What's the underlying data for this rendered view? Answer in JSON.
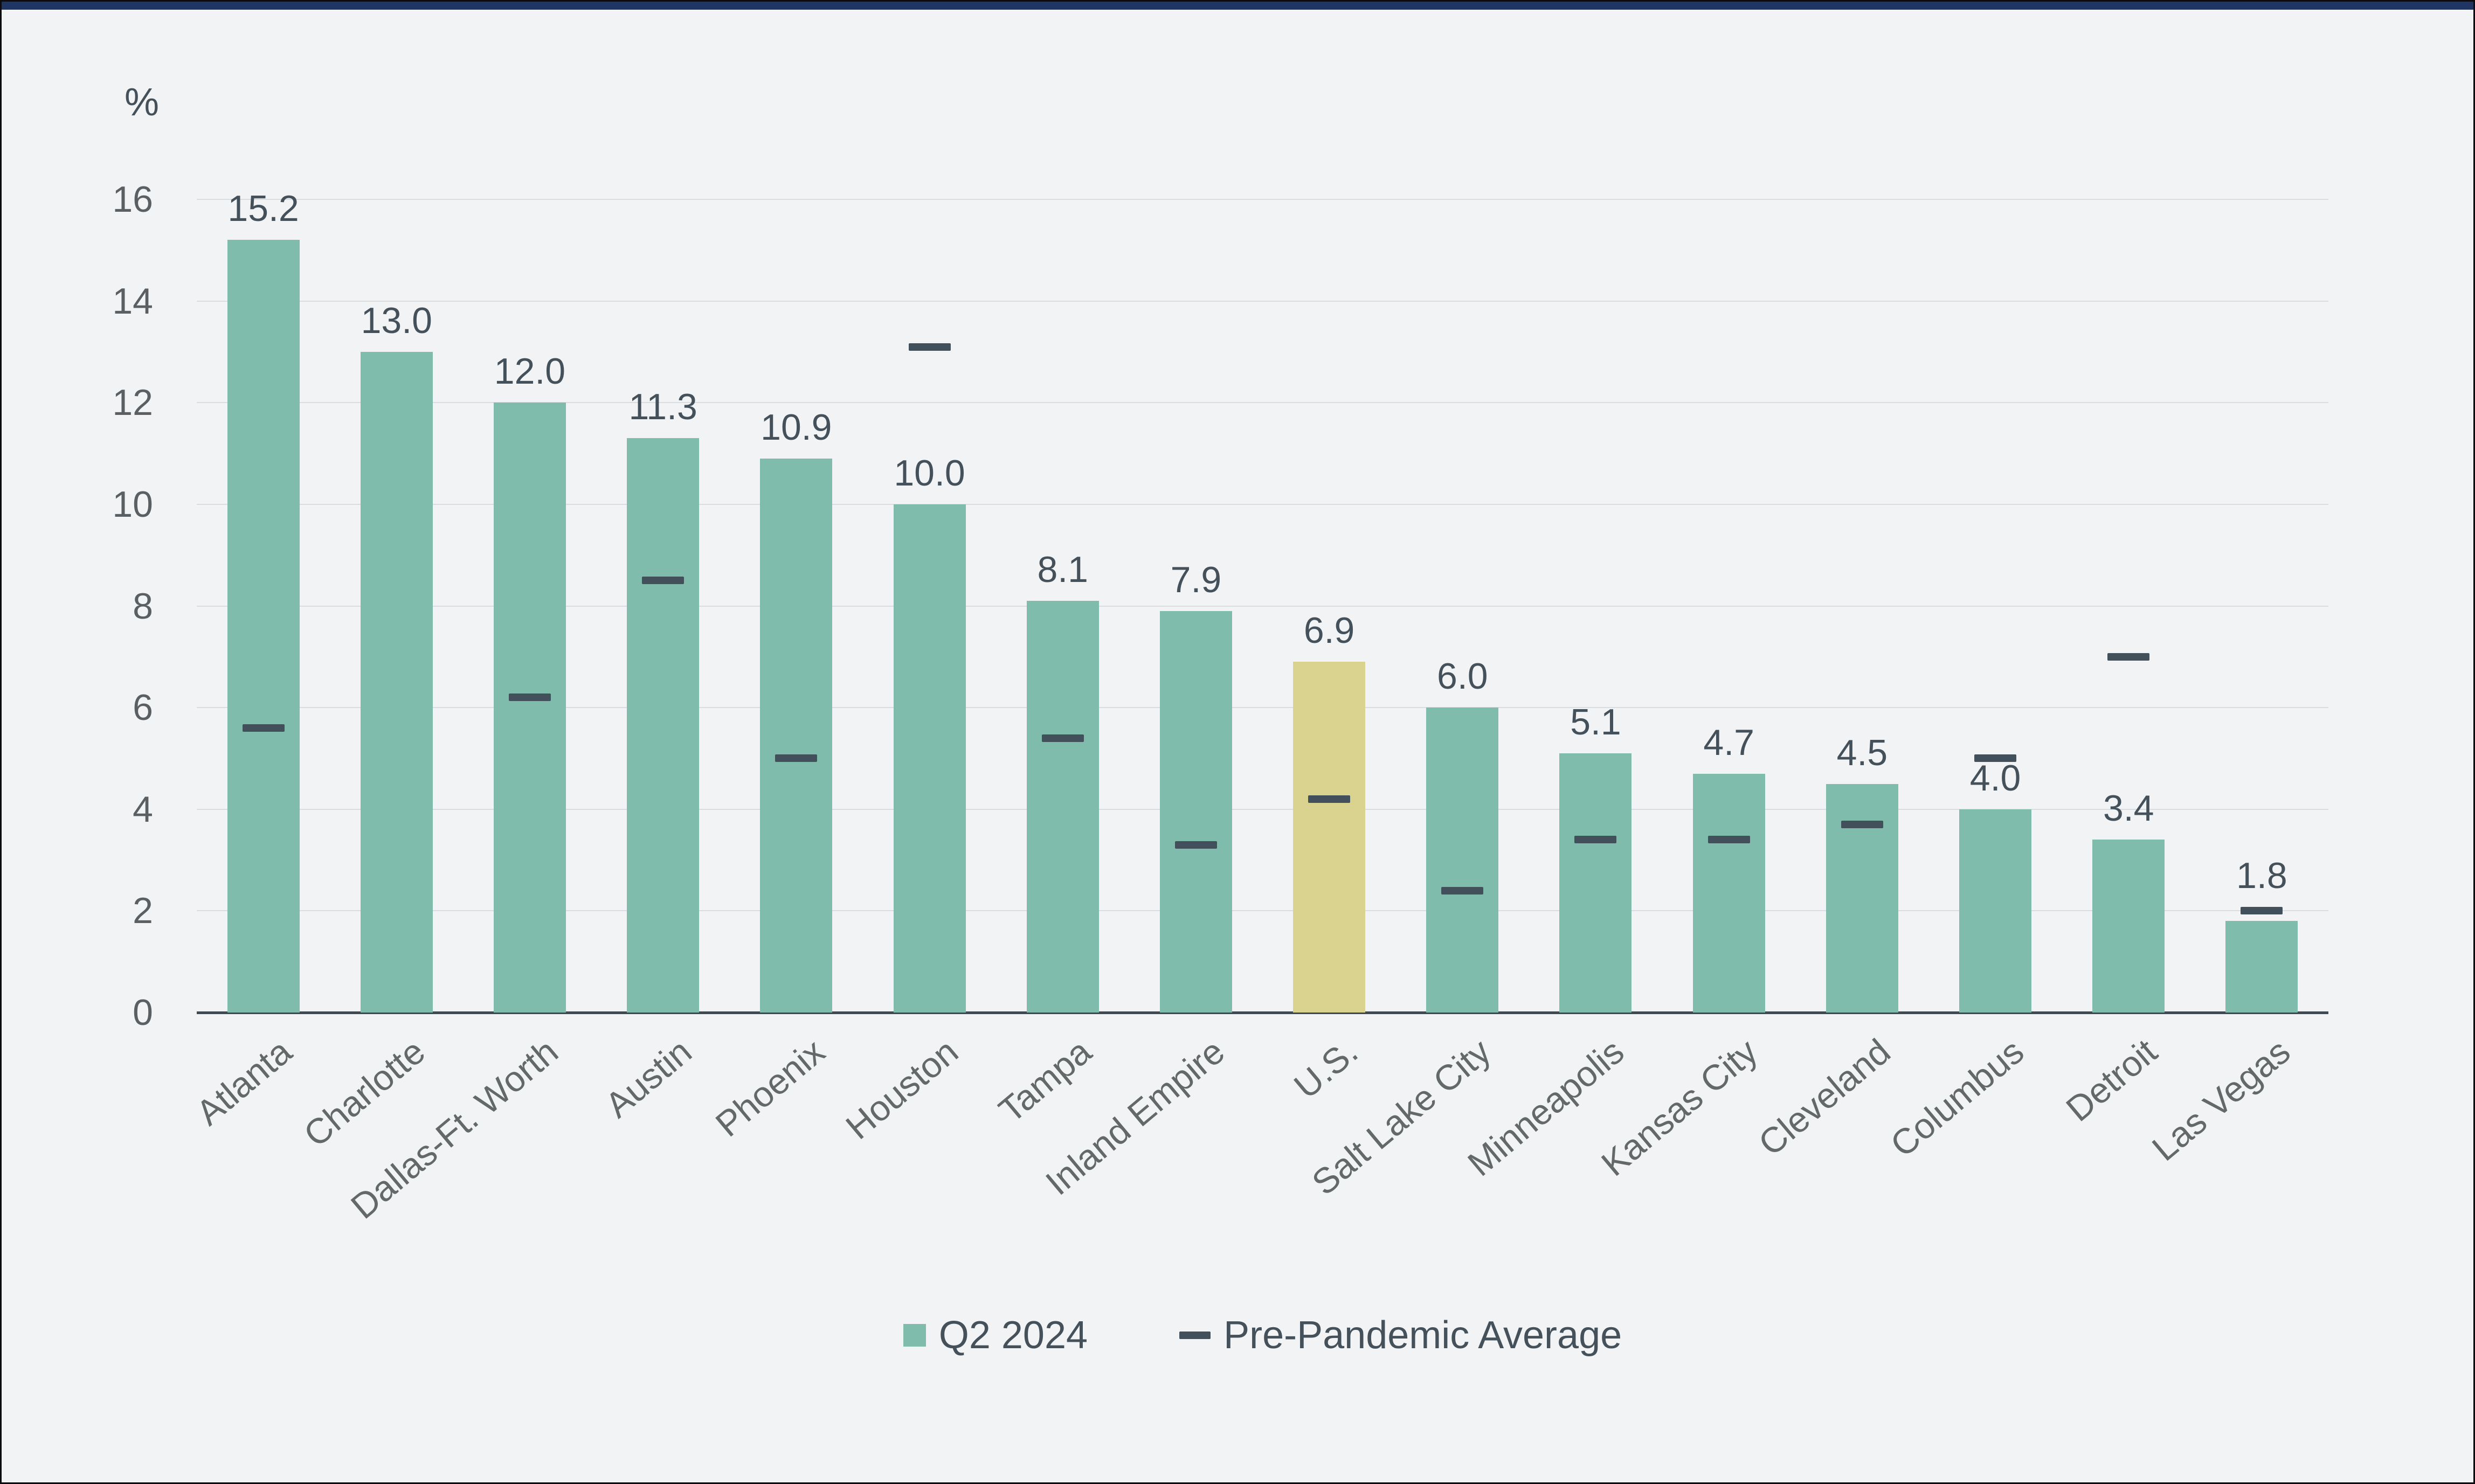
{
  "window": {
    "top_accent_color": "#1f3563",
    "frame_border_color": "#0b0b10",
    "background_color": "#f2f3f4"
  },
  "chart_data": {
    "type": "bar",
    "title": "",
    "unit_label": "%",
    "xlabel": "",
    "ylabel": "%",
    "ylim": [
      0,
      16
    ],
    "yticks": [
      0,
      2,
      4,
      6,
      8,
      10,
      12,
      14,
      16
    ],
    "grid": true,
    "legend_position": "bottom",
    "value_label_decimals": 1,
    "categories": [
      "Atlanta",
      "Charlotte",
      "Dallas-Ft. Worth",
      "Austin",
      "Phoenix",
      "Houston",
      "Tampa",
      "Inland Empire",
      "U.S.",
      "Salt Lake City",
      "Minneapolis",
      "Kansas City",
      "Cleveland",
      "Columbus",
      "Detroit",
      "Las Vegas"
    ],
    "series": [
      {
        "name": "Q2 2024",
        "mark": "bar",
        "values": [
          15.2,
          13.0,
          12.0,
          11.3,
          10.9,
          10.0,
          8.1,
          7.9,
          6.9,
          6.0,
          5.1,
          4.7,
          4.5,
          4.0,
          3.4,
          1.8
        ],
        "color": "#7fbcab",
        "highlight_category": "U.S.",
        "highlight_color": "#d9d38f"
      },
      {
        "name": "Pre-Pandemic Average",
        "mark": "dash",
        "values": [
          5.6,
          null,
          6.2,
          8.5,
          5.0,
          13.1,
          5.4,
          3.3,
          4.2,
          2.4,
          3.4,
          3.4,
          3.7,
          5.0,
          7.0,
          2.0
        ],
        "color": "#42505b"
      }
    ]
  },
  "legend": {
    "items": [
      {
        "label": "Q2 2024",
        "swatch": "square",
        "color": "#7fbcab"
      },
      {
        "label": "Pre-Pandemic Average",
        "swatch": "dash",
        "color": "#42505b"
      }
    ]
  },
  "colors": {
    "grid": "#d9dde0",
    "axis": "#3d4a53",
    "tick_text": "#595f62",
    "category_text": "#636869",
    "value_text": "#44515a",
    "legend_text": "#44515a"
  }
}
